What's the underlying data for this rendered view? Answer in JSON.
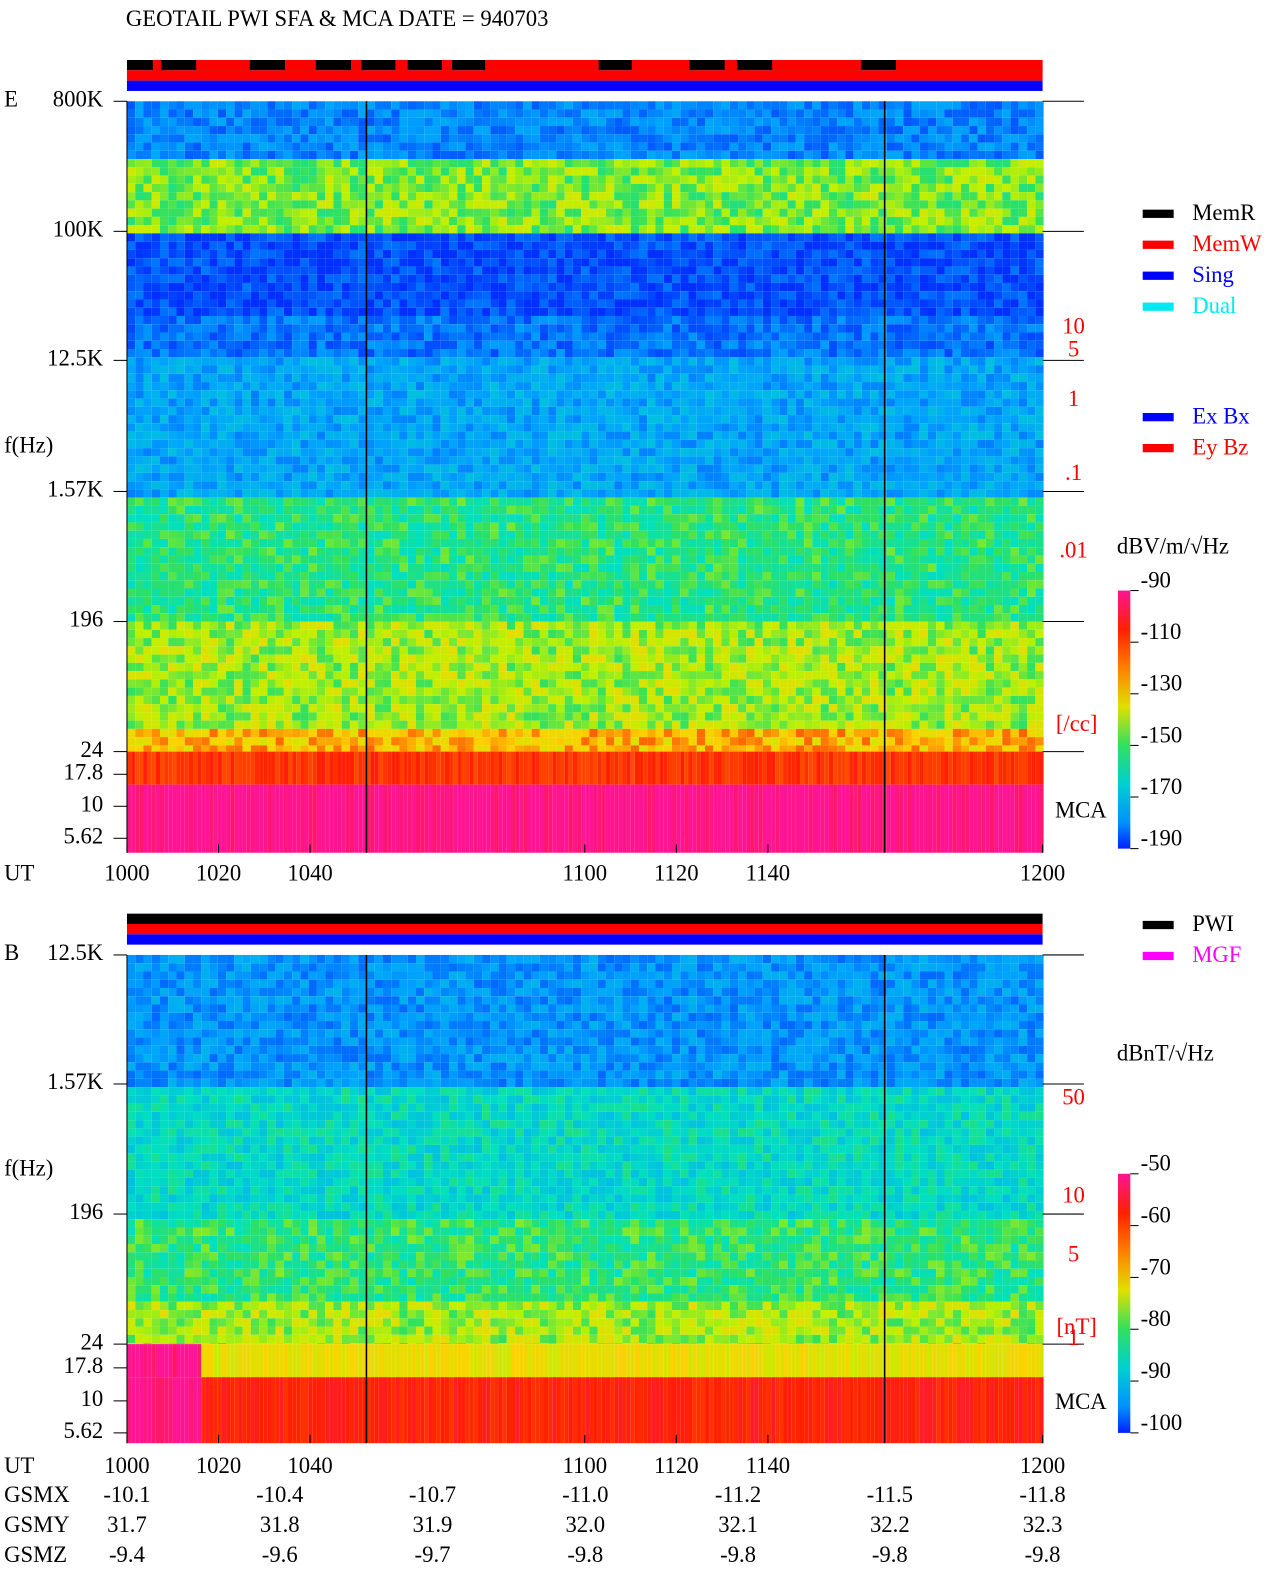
{
  "title": "GEOTAIL   PWI SFA & MCA   DATE = 940703",
  "panels": [
    {
      "label": "E",
      "ylabel": "f(Hz)",
      "yticks": [
        "800K",
        "100K",
        "12.5K",
        "1.57K",
        "196",
        "24",
        "17.8",
        "10",
        "5.62"
      ],
      "mca": "MCA",
      "xlabel": "UT",
      "xlim": [
        1000,
        1200
      ],
      "xticks": [
        1000,
        1020,
        1040,
        1100,
        1120,
        1140,
        1200
      ],
      "unit": "dBV/m/√Hz",
      "colorbar": {
        "lim": [
          -90,
          -190
        ],
        "ticks": [
          -90,
          -110,
          -130,
          -150,
          -170,
          -190
        ]
      },
      "right_ticks": [
        "10",
        "5",
        "1",
        ".1",
        ".01"
      ],
      "right_label": "[/cc]"
    },
    {
      "label": "B",
      "ylabel": "f(Hz)",
      "yticks": [
        "12.5K",
        "1.57K",
        "196",
        "24",
        "17.8",
        "10",
        "5.62"
      ],
      "mca": "MCA",
      "xlabel": "UT",
      "xlim": [
        1000,
        1200
      ],
      "xticks": [
        1000,
        1020,
        1040,
        1100,
        1120,
        1140,
        1200
      ],
      "unit": "dBnT/√Hz",
      "colorbar": {
        "lim": [
          -50,
          -100
        ],
        "ticks": [
          -50,
          -60,
          -70,
          -80,
          -90,
          -100
        ]
      },
      "right_ticks": [
        "50",
        "10",
        "5",
        "1"
      ],
      "right_label": "[nT]"
    }
  ],
  "legend_status": [
    {
      "name": "MemR",
      "color": "#000000"
    },
    {
      "name": "MemW",
      "color": "#ff0000"
    },
    {
      "name": "Sing",
      "color": "#0000ff"
    },
    {
      "name": "Dual",
      "color": "#00e8f0"
    }
  ],
  "legend_antenna": [
    {
      "name": "Ex Bx",
      "color": "#0000ff"
    },
    {
      "name": "Ey Bz",
      "color": "#ff0000"
    }
  ],
  "legend_source": [
    {
      "name": "PWI",
      "color": "#000000"
    },
    {
      "name": "MGF",
      "color": "#ff00ff"
    }
  ],
  "orbit": {
    "rows": [
      {
        "name": "GSMX",
        "values": [
          "-10.1",
          "-10.4",
          "-10.7",
          "-11.0",
          "-11.2",
          "-11.5",
          "-11.8"
        ]
      },
      {
        "name": "GSMY",
        "values": [
          "31.7",
          "31.8",
          "31.9",
          "32.0",
          "32.1",
          "32.2",
          "32.3"
        ]
      },
      {
        "name": "GSMZ",
        "values": [
          "-9.4",
          "-9.6",
          "-9.7",
          "-9.8",
          "-9.8",
          "-9.8",
          "-9.8"
        ]
      }
    ]
  }
}
